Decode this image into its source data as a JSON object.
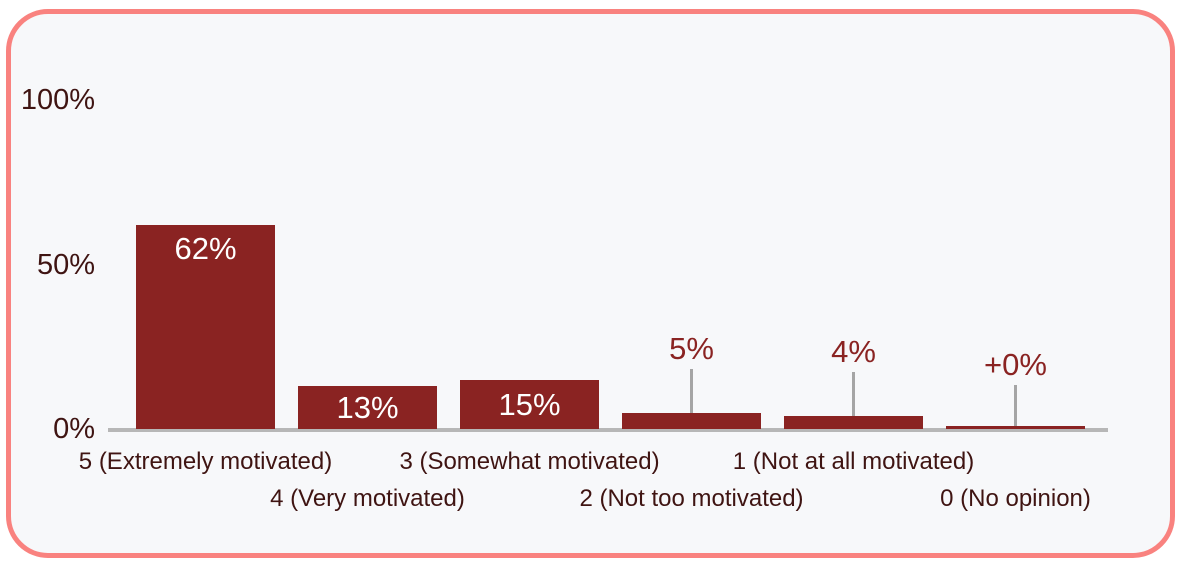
{
  "card": {
    "background": "#f7f8fa",
    "border_color": "#f9827f",
    "page_background": "#ffffff"
  },
  "chart_data": {
    "type": "bar",
    "title": "",
    "categories": [
      "5 (Extremely motivated)",
      "4 (Very motivated)",
      "3 (Somewhat motivated)",
      "2 (Not too motivated)",
      "1 (Not at all motivated)",
      "0 (No opinion)"
    ],
    "values": [
      62,
      13,
      15,
      5,
      4,
      0
    ],
    "value_labels": [
      "62%",
      "13%",
      "15%",
      "5%",
      "4%",
      "+0%"
    ],
    "label_positions": [
      "inside-top",
      "inside",
      "inside",
      "above",
      "above",
      "above"
    ],
    "y_ticks": [
      {
        "label": "100%",
        "value": 100
      },
      {
        "label": "50%",
        "value": 50
      },
      {
        "label": "0%",
        "value": 0
      }
    ],
    "ylim": [
      0,
      100
    ],
    "grid": "off",
    "legend": "none",
    "x_label_layout": "staggered-two-rows",
    "bar_color": "#8a2322",
    "inside_label_color": "#ffffff",
    "outside_label_color": "#8a2322",
    "tick_label_color": "#3f1412",
    "axis_line_color": "#b7b7b7",
    "leader_line_color": "#a5a5a5"
  }
}
